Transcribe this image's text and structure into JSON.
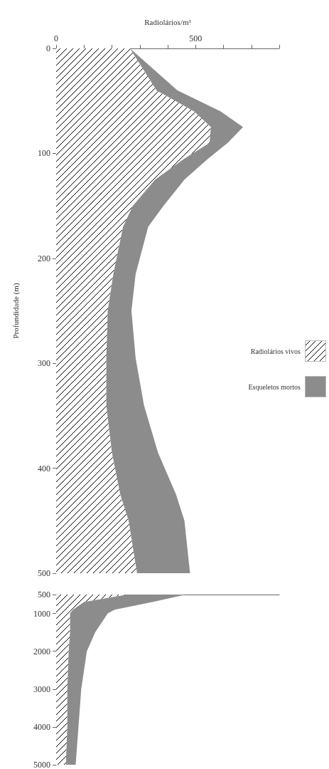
{
  "chart_data": [
    {
      "type": "area",
      "orientation": "horizontal",
      "stacked": true,
      "xlabel": "Radiolários/m³",
      "ylabel": "Profundidade (m)",
      "legend": "right",
      "x": [
        0,
        40,
        60,
        75,
        90,
        105,
        125,
        150,
        170,
        215,
        250,
        295,
        340,
        385,
        425,
        450,
        500
      ],
      "series": [
        {
          "name": "Radiolários vivos",
          "color": "#000000",
          "values": [
            265,
            360,
            495,
            555,
            550,
            460,
            355,
            275,
            240,
            205,
            185,
            180,
            180,
            200,
            230,
            260,
            290
          ]
        },
        {
          "name": "Esqueletos mortos",
          "color": "#8c8c8c",
          "values": [
            0,
            75,
            95,
            115,
            65,
            85,
            105,
            110,
            90,
            80,
            85,
            105,
            135,
            165,
            200,
            200,
            190
          ]
        }
      ],
      "xlim": [
        0,
        800
      ],
      "xticks": [
        0,
        {
          "value": 100,
          "label": null
        },
        {
          "value": 200,
          "label": null
        },
        {
          "value": 300,
          "label": null
        },
        {
          "value": 400,
          "label": null
        },
        500,
        {
          "value": 600,
          "label": null
        },
        {
          "value": 700,
          "label": null
        },
        {
          "value": 800,
          "label": null
        }
      ],
      "ylim": [
        500,
        0
      ],
      "yticks": [
        0,
        100,
        200,
        300,
        400,
        500
      ]
    },
    {
      "type": "area",
      "orientation": "horizontal",
      "stacked": true,
      "tick_labels": "y",
      "x": [
        500,
        700,
        900,
        1000,
        1500,
        2000,
        3000,
        4000,
        5000
      ],
      "series": [
        {
          "color": "#000000",
          "values": [
            255,
            100,
            60,
            50,
            50,
            45,
            40,
            40,
            35
          ]
        },
        {
          "color": "#8c8c8c",
          "values": [
            210,
            245,
            150,
            135,
            90,
            65,
            50,
            40,
            35
          ]
        }
      ],
      "xlim": [
        0,
        800
      ],
      "ylim": [
        5000,
        500
      ],
      "yticks": [
        500,
        1000,
        2000,
        3000,
        4000,
        5000
      ]
    }
  ]
}
